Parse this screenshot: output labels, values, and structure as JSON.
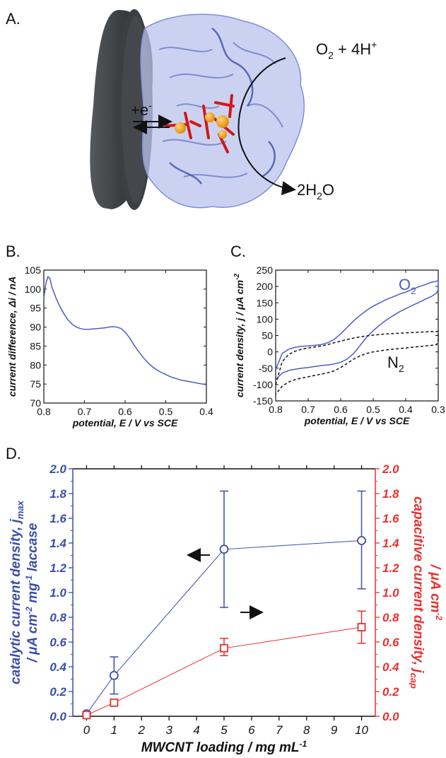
{
  "panels": {
    "a": {
      "label": "A.",
      "electron": "+e",
      "electron_sup": "-",
      "reactant": "O",
      "reactant_sub": "2",
      "reactant_rest": " + 4H",
      "reactant_sup": "+",
      "product_pre": "2H",
      "product_sub": "2",
      "product_post": "O"
    },
    "b": {
      "label": "B."
    },
    "c": {
      "label": "C."
    },
    "d": {
      "label": "D."
    }
  },
  "chart_data": [
    {
      "id": "B",
      "type": "line",
      "ylabel_parts": [
        "current difference, ",
        "Δi",
        " / nA"
      ],
      "xlabel_parts": [
        "potential, ",
        "E",
        " / V vs SCE"
      ],
      "xlim": [
        0.8,
        0.4
      ],
      "ylim": [
        70,
        105
      ],
      "xticks": [
        "0.8",
        "0.7",
        "0.6",
        "0.5",
        "0.4"
      ],
      "xtick_values": [
        0.8,
        0.7,
        0.6,
        0.5,
        0.4
      ],
      "yticks": [
        "70",
        "75",
        "80",
        "85",
        "90",
        "95",
        "100",
        "105"
      ],
      "ytick_values": [
        70,
        75,
        80,
        85,
        90,
        95,
        100,
        105
      ],
      "series": [
        {
          "color": "#4a5fbf",
          "x": [
            0.8,
            0.795,
            0.79,
            0.785,
            0.78,
            0.77,
            0.76,
            0.75,
            0.74,
            0.73,
            0.72,
            0.71,
            0.7,
            0.69,
            0.68,
            0.67,
            0.66,
            0.65,
            0.64,
            0.63,
            0.62,
            0.61,
            0.6,
            0.59,
            0.58,
            0.57,
            0.56,
            0.55,
            0.54,
            0.53,
            0.52,
            0.51,
            0.5,
            0.49,
            0.48,
            0.47,
            0.46,
            0.45,
            0.44,
            0.43,
            0.42,
            0.41,
            0.4
          ],
          "y": [
            97.5,
            101.5,
            103.3,
            102.8,
            100.5,
            97.6,
            95.3,
            93.4,
            91.8,
            90.7,
            90.0,
            89.6,
            89.4,
            89.4,
            89.5,
            89.6,
            89.7,
            89.8,
            90.0,
            90.1,
            90.0,
            89.6,
            88.7,
            87.3,
            85.6,
            84.0,
            82.6,
            81.3,
            80.2,
            79.3,
            78.6,
            78.0,
            77.5,
            77.0,
            76.6,
            76.3,
            76.0,
            75.8,
            75.6,
            75.4,
            75.2,
            75.0,
            74.8
          ]
        }
      ]
    },
    {
      "id": "C",
      "type": "line",
      "ylabel_parts": [
        "current density, ",
        "j",
        " / μA cm",
        "-2"
      ],
      "xlabel_parts": [
        "potential, ",
        "E",
        " / V vs SCE"
      ],
      "xlim": [
        0.8,
        0.3
      ],
      "ylim": [
        -150,
        250
      ],
      "xticks": [
        "0.8",
        "0.7",
        "0.6",
        "0.5",
        "0.4",
        "0.3"
      ],
      "xtick_values": [
        0.8,
        0.7,
        0.6,
        0.5,
        0.4,
        0.3
      ],
      "yticks": [
        "-150",
        "-100",
        "-50",
        "0",
        "50",
        "100",
        "150",
        "200",
        "250"
      ],
      "ytick_values": [
        -150,
        -100,
        -50,
        0,
        50,
        100,
        150,
        200,
        250
      ],
      "series": [
        {
          "name": "O",
          "name_sub": "2",
          "color": "#4a5fbf",
          "dash": false,
          "x": [
            0.8,
            0.78,
            0.76,
            0.74,
            0.72,
            0.7,
            0.68,
            0.66,
            0.64,
            0.62,
            0.6,
            0.58,
            0.56,
            0.54,
            0.52,
            0.5,
            0.48,
            0.46,
            0.44,
            0.42,
            0.4,
            0.38,
            0.36,
            0.34,
            0.32,
            0.305,
            0.3,
            0.3,
            0.305,
            0.32,
            0.34,
            0.36,
            0.38,
            0.4,
            0.42,
            0.44,
            0.46,
            0.48,
            0.5,
            0.52,
            0.54,
            0.56,
            0.58,
            0.6,
            0.62,
            0.64,
            0.66,
            0.68,
            0.7,
            0.72,
            0.74,
            0.76,
            0.78,
            0.8
          ],
          "y": [
            -55,
            -5,
            8,
            14,
            17,
            18,
            20,
            22,
            28,
            38,
            55,
            75,
            95,
            112,
            127,
            140,
            150,
            160,
            168,
            176,
            183,
            191,
            199,
            206,
            213,
            216,
            218,
            190,
            180,
            170,
            161,
            151,
            142,
            132,
            122,
            110,
            97,
            82,
            65,
            45,
            20,
            -5,
            -22,
            -32,
            -37,
            -40,
            -42,
            -45,
            -48,
            -50,
            -53,
            -57,
            -65,
            -85
          ]
        },
        {
          "name": "N",
          "name_sub": "2",
          "color": "#111111",
          "dash": true,
          "x": [
            0.8,
            0.78,
            0.76,
            0.74,
            0.72,
            0.7,
            0.68,
            0.66,
            0.64,
            0.62,
            0.6,
            0.58,
            0.56,
            0.54,
            0.52,
            0.5,
            0.48,
            0.46,
            0.44,
            0.42,
            0.4,
            0.38,
            0.36,
            0.34,
            0.32,
            0.305,
            0.3,
            0.3,
            0.305,
            0.32,
            0.34,
            0.36,
            0.38,
            0.4,
            0.42,
            0.44,
            0.46,
            0.48,
            0.5,
            0.52,
            0.54,
            0.56,
            0.58,
            0.6,
            0.62,
            0.64,
            0.66,
            0.68,
            0.7,
            0.72,
            0.74,
            0.76,
            0.78,
            0.8
          ],
          "y": [
            -100,
            -30,
            -8,
            2,
            8,
            12,
            15,
            18,
            22,
            28,
            33,
            38,
            42,
            46,
            49,
            51,
            53,
            55,
            56,
            57,
            58,
            59,
            60,
            61,
            62,
            62,
            63,
            35,
            22,
            20,
            18,
            16,
            14,
            12,
            10,
            8,
            6,
            3,
            0,
            -5,
            -12,
            -22,
            -35,
            -48,
            -58,
            -64,
            -68,
            -72,
            -76,
            -80,
            -85,
            -92,
            -105,
            -130
          ]
        }
      ]
    },
    {
      "id": "D",
      "type": "line",
      "x_title_parts": [
        "MWCNT loading",
        " / mg mL",
        "-1"
      ],
      "ylabel_left_parts": [
        "catalytic current density, ",
        "j",
        "max"
      ],
      "ylabel_left_line2": [
        "/ μA cm",
        "-2",
        " mg",
        "-1",
        " laccase"
      ],
      "ylabel_right_parts": [
        "capacitive current density, ",
        "j",
        "cap"
      ],
      "ylabel_right_line2": [
        "/ μA cm",
        "-2"
      ],
      "xlim": [
        -0.5,
        10.5
      ],
      "ylim": [
        0,
        2
      ],
      "xticks": [
        "0",
        "1",
        "2",
        "3",
        "4",
        "5",
        "6",
        "7",
        "8",
        "9",
        "10"
      ],
      "yticks": [
        "0.0",
        "0.2",
        "0.4",
        "0.6",
        "0.8",
        "1.0",
        "1.2",
        "1.4",
        "1.6",
        "1.8",
        "2.0"
      ],
      "series": [
        {
          "axis": "left",
          "marker": "circle",
          "color": "#3a4ea8",
          "x": [
            0,
            1,
            5,
            10
          ],
          "y": [
            0.02,
            0.33,
            1.35,
            1.42
          ],
          "err_lo": [
            0.0,
            0.18,
            0.88,
            1.03
          ],
          "err_hi": [
            0.04,
            0.48,
            1.82,
            1.82
          ]
        },
        {
          "axis": "right",
          "marker": "square",
          "color": "#e8312f",
          "x": [
            0,
            1,
            5,
            10
          ],
          "y": [
            0.01,
            0.11,
            0.55,
            0.72
          ],
          "err_lo": [
            0.0,
            0.09,
            0.49,
            0.59
          ],
          "err_hi": [
            0.02,
            0.13,
            0.63,
            0.85
          ]
        }
      ]
    }
  ]
}
